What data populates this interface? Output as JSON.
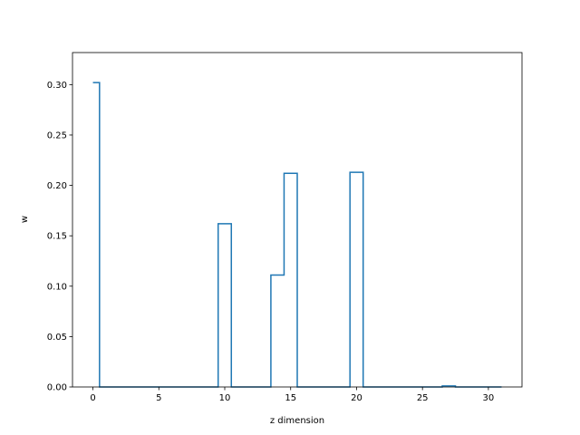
{
  "chart_data": {
    "type": "line",
    "style": "step",
    "xlabel": "z dimension",
    "ylabel": "w",
    "xlim": [
      -1.55,
      32.55
    ],
    "ylim": [
      0,
      0.3318
    ],
    "xticks": [
      0,
      5,
      10,
      15,
      20,
      25,
      30
    ],
    "xtick_labels": [
      "0",
      "5",
      "10",
      "15",
      "20",
      "25",
      "30"
    ],
    "yticks": [
      0.0,
      0.05,
      0.1,
      0.15,
      0.2,
      0.25,
      0.3
    ],
    "ytick_labels": [
      "0.00",
      "0.05",
      "0.10",
      "0.15",
      "0.20",
      "0.25",
      "0.30"
    ],
    "grid": false,
    "series": [
      {
        "color": "#1f77b4",
        "x": [
          0,
          1,
          2,
          3,
          4,
          5,
          6,
          7,
          8,
          9,
          10,
          11,
          12,
          13,
          14,
          15,
          16,
          17,
          18,
          19,
          20,
          21,
          22,
          23,
          24,
          25,
          26,
          27,
          28,
          29,
          30,
          31
        ],
        "values": [
          0.302,
          0,
          0,
          0,
          0,
          0,
          0,
          0,
          0,
          0,
          0.162,
          0,
          0,
          0,
          0.111,
          0.212,
          0,
          0,
          0,
          0,
          0.213,
          0,
          0,
          0,
          0,
          0,
          0,
          0.001,
          0,
          0,
          0,
          0
        ]
      }
    ]
  }
}
